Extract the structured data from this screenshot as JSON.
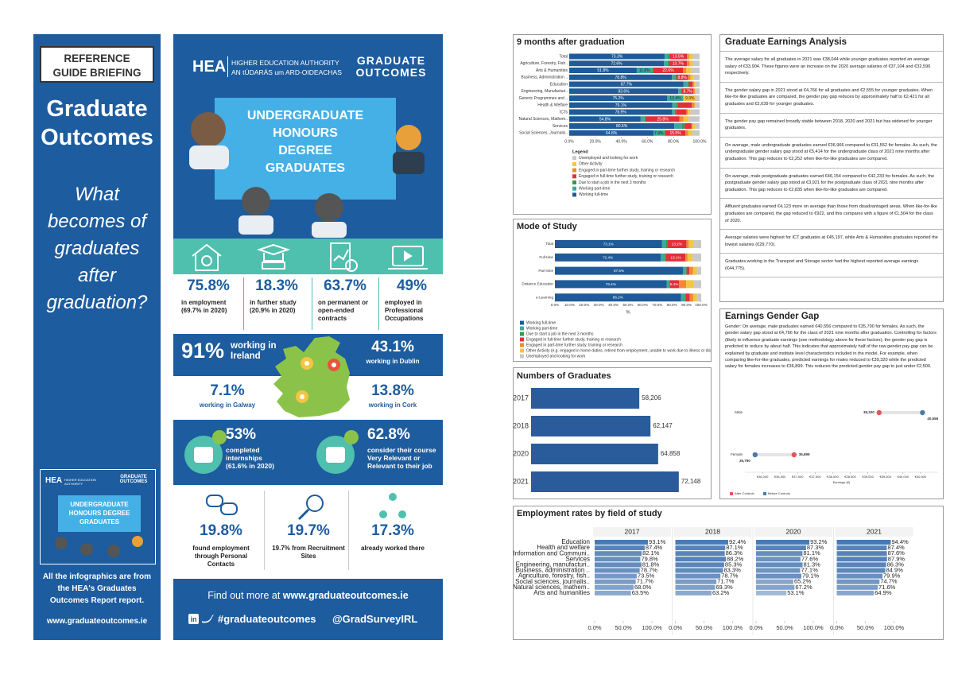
{
  "left_panel": {
    "badge": "REFERENCE GUIDE BRIEFING",
    "title": "Graduate Outcomes",
    "question": "What becomes of graduates after graduation?",
    "thumbnail": {
      "logo": "HEA",
      "org": "HIGHER EDUCATION AUTHORITY",
      "brand": "GRADUATE OUTCOMES",
      "banner": "UNDERGRADUATE HONOURS DEGREE GRADUATES"
    },
    "note": "All the infographics are from the HEA's Graduates Outcomes Report report.",
    "url": "www.graduateoutcomes.ie"
  },
  "infographic": {
    "logo": "HEA",
    "org": "HIGHER EDUCATION AUTHORITY",
    "org_irish": "AN tÚDARÁS um ARD-OIDEACHAS",
    "brand": "GRADUATE OUTCOMES",
    "banner": "UNDERGRADUATE HONOURS DEGREE GRADUATES",
    "stats": [
      {
        "value": "75.8%",
        "label": "in employment (69.7% in 2020)"
      },
      {
        "value": "18.3%",
        "label": "in further study (20.9% in 2020)"
      },
      {
        "value": "63.7%",
        "label": "on permanent or open-ended contracts"
      },
      {
        "value": "49%",
        "label": "employed in Professional Occupations"
      }
    ],
    "ireland": {
      "main_value": "91%",
      "main_label": "working in Ireland",
      "items": [
        {
          "value": "43.1%",
          "label": "working in Dublin"
        },
        {
          "value": "7.1%",
          "label": "working in Galway"
        },
        {
          "value": "13.8%",
          "label": "working in Cork"
        }
      ]
    },
    "highlights": [
      {
        "value": "53%",
        "label": "completed internships (61.6% in 2020)"
      },
      {
        "value": "62.8%",
        "label": "consider their course Very Relevant or Relevant to their job"
      }
    ],
    "job_search": [
      {
        "value": "19.8%",
        "label": "found employment through Personal Contacts"
      },
      {
        "value": "19.7%",
        "label": "19.7% from Recruitment Sites"
      },
      {
        "value": "17.3%",
        "label": "already worked there"
      }
    ],
    "footer": {
      "text": "Find out more at",
      "url": "www.graduateoutcomes.ie",
      "hashtag": "#graduateoutcomes",
      "handle": "@GradSurveyIRL"
    }
  },
  "earnings_analysis": {
    "title": "Graduate Earnings Analysis",
    "paragraphs": [
      "The average salary for all graduates in 2021 was €38,044 while younger graduates reported an average salary of €33,904. These figures were an increase on the 2020 average salaries of €37,104 and €32,596 respectively.",
      "The gender salary gap in 2021 stood at €4,766 for all graduates and €2,555 for younger graduates. When like-for-like graduates are compared, the gender pay gap reduces by approximately half to €2,421 for all graduates and €2,039 for younger graduates.",
      "The gender pay gap remained broadly stable between 2018, 2020 and 2021 but has widened for younger graduates.",
      "On average, male undergraduate graduates earned €36,966 compared to €31,552 for females. As such, the undergraduate gender salary gap stood at €5,414 for the undergraduate class of 2021 nine months after graduation. This gap reduces to €2,252 when like-for-like graduates are compared.",
      "On average, male postgraduate graduates earned €46,154 compared to €42,233 for females. As such, the postgraduate gender salary gap stood at €3,921 for the postgraduate class of 2021 nine months after graduation. This gap reduces to €2,835 when like-for-like graduates are compared.",
      "Affluent graduates earned €4,123 more on average than those from disadvantaged areas. When like-for-like graduates are compared, the gap reduced to €922, and this compares with a figure of €1,504 for the class of 2020.",
      "Average salaries were highest for ICT graduates at €45,197, while Arts & Humanities graduates reported the lowest salaries (€29,770).",
      "Graduates working in the Transport and Storage sector had the highest reported average earnings (€44,775)."
    ]
  },
  "chart_data": [
    {
      "type": "stacked_bar",
      "title": "9 months after graduation",
      "legend_title": "Legend",
      "categories": [
        "Total",
        "Agriculture, Forestry, Fish..",
        "Arts & Humanities",
        "Business, Administration ..",
        "Education",
        "Engineering, Manufacturi..",
        "Generic Programmes and ..",
        "Health & Welfare",
        "ICTs",
        "Natural Sciences, Mathem..",
        "Services",
        "Social Sciences, Journalis.."
      ],
      "series": [
        {
          "name": "Working full-time",
          "color": "#1f5b98",
          "values": [
            73.3,
            72.6,
            51.8,
            78.8,
            87.7,
            83.6,
            75.2,
            79.1,
            78.9,
            54.8,
            80.6,
            64.8
          ],
          "value_labels": [
            "73.3%",
            "72.6%",
            "51.8%",
            "78.8%",
            "87.7%",
            "83.6%",
            "75.2%",
            "79.1%",
            "78.9%",
            "54.8%",
            "80.6%",
            "64.8%"
          ]
        },
        {
          "name": "Working part-time",
          "color": "#3aa99f",
          "values": [
            2.6,
            3.0,
            11.8,
            2.5,
            3.0,
            2.0,
            12.4,
            3.0,
            2.0,
            3.0,
            6.0,
            7.9
          ],
          "value_labels": [
            null,
            null,
            "11.8%",
            null,
            null,
            null,
            "12.4%",
            null,
            null,
            null,
            null,
            "7.9%"
          ]
        },
        {
          "name": "Due to start a job in the next 3 months",
          "color": "#2e9e44",
          "values": [
            1.0,
            1.0,
            1.0,
            1.0,
            1.0,
            1.0,
            0,
            1.0,
            1.0,
            1.0,
            2.0,
            1.0
          ]
        },
        {
          "name": "Engaged in full-time further study, training or research",
          "color": "#e0303b",
          "values": [
            13.5,
            13.7,
            22.6,
            8.8,
            3.0,
            8.7,
            0,
            11.0,
            8.0,
            25.8,
            5.0,
            15.5
          ],
          "value_labels": [
            "13.5%",
            "13.7%",
            "22.6%",
            "8.8%",
            null,
            "8.7%",
            null,
            null,
            null,
            "25.8%",
            null,
            "15.5%"
          ]
        },
        {
          "name": "Engaged in part-time further study, training or research",
          "color": "#f08a32",
          "values": [
            1.6,
            2.0,
            2.5,
            2.0,
            1.0,
            1.0,
            0,
            2.0,
            1.0,
            3.0,
            1.0,
            2.0
          ]
        },
        {
          "name": "Other Activity",
          "color": "#f4c542",
          "values": [
            2.6,
            2.5,
            3.5,
            2.5,
            1.0,
            1.0,
            9.9,
            1.0,
            2.0,
            4.0,
            2.0,
            3.0
          ],
          "value_labels": [
            null,
            null,
            null,
            null,
            null,
            null,
            "9.9%",
            null,
            null,
            null,
            null,
            null
          ]
        },
        {
          "name": "Unemployed and looking for work",
          "color": "#c9c9c9",
          "values": [
            5.4,
            5.2,
            6.8,
            4.4,
            3.3,
            2.7,
            2.5,
            2.9,
            7.1,
            8.4,
            3.4,
            5.8
          ]
        }
      ],
      "xlim": [
        0,
        100
      ],
      "xticks": [
        {
          "value": 0,
          "label": "0.0%"
        },
        {
          "value": 20,
          "label": "20.0%"
        },
        {
          "value": 40,
          "label": "40.0%"
        },
        {
          "value": 60,
          "label": "60.0%"
        },
        {
          "value": 80,
          "label": "80.0%"
        },
        {
          "value": 100,
          "label": "100.0%"
        }
      ]
    },
    {
      "type": "stacked_bar",
      "title": "Mode of Study",
      "xlabel": "%",
      "categories": [
        "Total",
        "Full-time",
        "Part-time",
        "Distance Education",
        "e-Learning"
      ],
      "series": [
        {
          "name": "Working full-time",
          "color": "#1f5b98",
          "values": [
            73.1,
            72.4,
            87.5,
            76.4,
            86.2
          ],
          "value_labels": [
            "73.1%",
            "72.4%",
            "87.5%",
            "76.4%",
            "86.2%"
          ]
        },
        {
          "name": "Working part-time",
          "color": "#3aa99f",
          "values": [
            2.6,
            2.7,
            2.0,
            1.5,
            2.5
          ]
        },
        {
          "name": "Due to start a job in the next 3 months",
          "color": "#2e9e44",
          "values": [
            1.0,
            1.0,
            0.5,
            0.5,
            0.5
          ]
        },
        {
          "name": "Engaged in full-time further study, training or research",
          "color": "#e0303b",
          "values": [
            13.2,
            13.1,
            2.0,
            6.4,
            3.0
          ],
          "value_labels": [
            "13.2%",
            "13.1%",
            null,
            "6.4%",
            null
          ]
        },
        {
          "name": "Engaged in part-time further study, training or research",
          "color": "#f08a32",
          "values": [
            1.6,
            1.5,
            2.5,
            5.0,
            2.5
          ]
        },
        {
          "name": "Other Activity (e.g. engaged in home duties, retired from employment, unable to work due to illness or disability, ...",
          "color": "#f4c542",
          "values": [
            3.0,
            3.2,
            2.5,
            5.0,
            2.5
          ]
        },
        {
          "name": "Unemployed and looking for work",
          "color": "#c9c9c9",
          "values": [
            5.5,
            6.1,
            3.0,
            5.2,
            2.8
          ]
        }
      ],
      "xlim": [
        0,
        100
      ],
      "xticks": [
        {
          "value": 0,
          "label": "0.0%"
        },
        {
          "value": 10,
          "label": "10.0%"
        },
        {
          "value": 20,
          "label": "20.0%"
        },
        {
          "value": 30,
          "label": "30.0%"
        },
        {
          "value": 40,
          "label": "40.0%"
        },
        {
          "value": 50,
          "label": "50.0%"
        },
        {
          "value": 60,
          "label": "60.0%"
        },
        {
          "value": 70,
          "label": "70.0%"
        },
        {
          "value": 80,
          "label": "80.0%"
        },
        {
          "value": 90,
          "label": "90.0%"
        },
        {
          "value": 100,
          "label": "100.0%"
        }
      ]
    },
    {
      "type": "bar",
      "title": "Numbers of Graduates",
      "categories": [
        "2017",
        "2018",
        "2020",
        "2021"
      ],
      "values": [
        58206,
        62147,
        64858,
        72148
      ],
      "value_labels": [
        "58,206",
        "62,147",
        "64,858",
        "72,148"
      ],
      "color": "#2a5c9c",
      "xlim": [
        20000,
        75000
      ]
    },
    {
      "type": "dot",
      "title": "Earnings Gender Gap",
      "description": "Gender: On average, male graduates earned €40,556 compared to €35,790 for females. As such, the gender salary gap stood at €4,766 for the class of 2021 nine months after graduation. Controlling for factors (likely to influence graduate earnings (see methodology above for these factors), the gender pay gap is predicted to reduce by about half. This indicates that approximately half of the raw gender pay gap can be explained by graduate and institute level characteristics included in the model. For example, when comparing like-for-like graduates, predicted earnings for males reduced to €39,320 while the predicted salary for females increases to €36,899. This reduces the predicted gender pay gap to just under €2,500.",
      "categories": [
        "Male",
        "Female"
      ],
      "series": [
        {
          "name": "After Controls",
          "color": "#e15759",
          "values": [
            39320,
            36899
          ],
          "value_labels": [
            "39,320",
            "36,899"
          ]
        },
        {
          "name": "Before Controls",
          "color": "#4e79a7",
          "values": [
            40556,
            35790
          ],
          "value_labels": [
            "40,556",
            "35,790"
          ]
        }
      ],
      "xlabel": "Earnings (€)",
      "xlim": [
        35500,
        41000
      ],
      "xticks": [
        {
          "value": 36000,
          "label": "€36,000"
        },
        {
          "value": 36500,
          "label": "€36,500"
        },
        {
          "value": 37000,
          "label": "€37,000"
        },
        {
          "value": 37500,
          "label": "€37,500"
        },
        {
          "value": 38000,
          "label": "€38,000"
        },
        {
          "value": 38500,
          "label": "€38,500"
        },
        {
          "value": 39000,
          "label": "€39,000"
        },
        {
          "value": 39500,
          "label": "€39,500"
        },
        {
          "value": 40000,
          "label": "€40,000"
        },
        {
          "value": 40500,
          "label": "€40,500"
        }
      ]
    },
    {
      "type": "facet_bar",
      "title": "Employment rates by field of study",
      "categories": [
        "Education",
        "Health and welfare",
        "Information and Communi..",
        "Services",
        "Engineering, manufacturi..",
        "Business, administration ..",
        "Agriculture, forestry, fish..",
        "Social sciences, journalis..",
        "Natural sciences, mathem..",
        "Arts and humanities"
      ],
      "series": [
        {
          "name": "2017",
          "color": "#3d6fae",
          "values": [
            93.1,
            87.4,
            82.1,
            79.8,
            81.8,
            78.7,
            73.5,
            71.7,
            68.0,
            63.5
          ],
          "value_labels": [
            "93.1%",
            "87.4%",
            "82.1%",
            "79.8%",
            "81.8%",
            "78.7%",
            "73.5%",
            "71.7%",
            "68.0%",
            "63.5%"
          ]
        },
        {
          "name": "2018",
          "color": "#3d6fae",
          "values": [
            92.4,
            87.1,
            86.3,
            88.2,
            85.3,
            83.3,
            78.7,
            71.7,
            69.3,
            63.2
          ],
          "value_labels": [
            "92.4%",
            "87.1%",
            "86.3%",
            "88.2%",
            "85.3%",
            "83.3%",
            "78.7%",
            "71.7%",
            "69.3%",
            "63.2%"
          ]
        },
        {
          "name": "2020",
          "color": "#3d6fae",
          "values": [
            93.2,
            87.3,
            81.1,
            77.6,
            81.3,
            77.1,
            79.1,
            65.2,
            67.2,
            53.1
          ],
          "value_labels": [
            "93.2%",
            "87.3%",
            "81.1%",
            "77.6%",
            "81.3%",
            "77.1%",
            "79.1%",
            "65.2%",
            "67.2%",
            "53.1%"
          ]
        },
        {
          "name": "2021",
          "color": "#3d6fae",
          "values": [
            94.4,
            87.4,
            87.6,
            87.9,
            86.3,
            84.9,
            79.9,
            74.7,
            71.6,
            64.9
          ],
          "value_labels": [
            "94.4%",
            "87.4%",
            "87.6%",
            "87.9%",
            "86.3%",
            "84.9%",
            "79.9%",
            "74.7%",
            "71.6%",
            "64.9%"
          ]
        }
      ],
      "xlim": [
        0,
        100
      ],
      "xticks": [
        {
          "value": 0,
          "label": "0.0%"
        },
        {
          "value": 50,
          "label": "50.0%"
        },
        {
          "value": 100,
          "label": "100.0%"
        }
      ]
    }
  ]
}
